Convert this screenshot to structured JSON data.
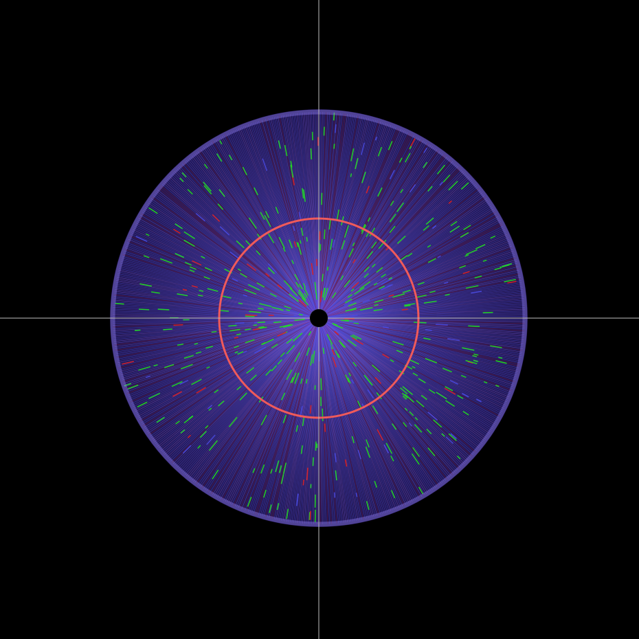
{
  "scene": {
    "background_color": "#000000",
    "crosshair_color": "#bfbfbf",
    "center_hole_color": "#000000",
    "ring_color": "#f05a5a",
    "disk_base_color": "#3a2a8a",
    "rim_color": "#8a78e8",
    "stroke_colors": {
      "blue": "#4a4adf",
      "violet": "#7a5ae0",
      "green": "#22dd22",
      "red": "#e02020",
      "dark_red": "#8a1030"
    }
  }
}
